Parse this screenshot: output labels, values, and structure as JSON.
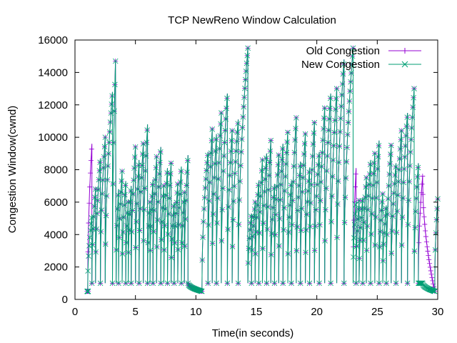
{
  "chart_data": {
    "type": "line",
    "title": "TCP NewReno Window Calculation",
    "xlabel": "Time(in seconds)",
    "ylabel": "Congestion Window(cwnd)",
    "xlim": [
      0,
      30
    ],
    "ylim": [
      0,
      16000
    ],
    "xticks": [
      "0",
      "5",
      "10",
      "15",
      "20",
      "25",
      "30"
    ],
    "yticks": [
      "0",
      "2000",
      "4000",
      "6000",
      "8000",
      "10000",
      "12000",
      "14000",
      "16000"
    ],
    "grid": false,
    "legend_position": "top-right",
    "series": [
      {
        "name": "Old Congestion",
        "color": "#9400d3",
        "marker": "plus",
        "cycles": [
          [
            1.0,
            500,
            500,
            0.1
          ],
          [
            1.05,
            500,
            9600,
            0.35
          ],
          [
            1.4,
            1000,
            6800,
            0.3
          ],
          [
            1.7,
            1000,
            8700,
            0.4
          ],
          [
            2.1,
            1000,
            10000,
            0.4
          ],
          [
            2.5,
            1000,
            12800,
            0.6
          ],
          [
            3.1,
            1000,
            14700,
            0.25
          ],
          [
            3.4,
            1000,
            6800,
            0.2
          ],
          [
            3.6,
            1000,
            7900,
            0.3
          ],
          [
            3.9,
            1000,
            7300,
            0.3
          ],
          [
            4.2,
            1000,
            6000,
            0.2
          ],
          [
            4.4,
            1000,
            7000,
            0.25
          ],
          [
            4.65,
            1000,
            9400,
            0.35
          ],
          [
            5.0,
            1000,
            8600,
            0.3
          ],
          [
            5.3,
            1000,
            9600,
            0.35
          ],
          [
            5.65,
            1000,
            10800,
            0.35
          ],
          [
            6.0,
            1000,
            6000,
            0.2
          ],
          [
            6.2,
            1000,
            7400,
            0.25
          ],
          [
            6.45,
            1000,
            8800,
            0.3
          ],
          [
            6.75,
            1000,
            9400,
            0.35
          ],
          [
            7.1,
            1000,
            7000,
            0.25
          ],
          [
            7.35,
            1000,
            8100,
            0.3
          ],
          [
            7.65,
            1000,
            8400,
            0.3
          ],
          [
            7.95,
            1000,
            6000,
            0.25
          ],
          [
            8.2,
            1000,
            7100,
            0.3
          ],
          [
            8.5,
            1000,
            8200,
            0.3
          ],
          [
            8.8,
            1000,
            6600,
            0.25
          ],
          [
            9.05,
            1000,
            8900,
            0.3
          ],
          [
            9.35,
            1000,
            500,
            1.15
          ],
          [
            10.5,
            500,
            9100,
            0.5
          ],
          [
            11.0,
            1000,
            10500,
            0.35
          ],
          [
            11.35,
            1000,
            10200,
            0.35
          ],
          [
            11.7,
            1000,
            11500,
            0.4
          ],
          [
            12.1,
            1000,
            12700,
            0.5
          ],
          [
            12.6,
            1000,
            10400,
            0.4
          ],
          [
            13.0,
            1000,
            11100,
            0.5
          ],
          [
            13.5,
            1000,
            15500,
            0.8
          ],
          [
            14.3,
            1000,
            5300,
            0.3
          ],
          [
            14.6,
            1000,
            6000,
            0.3
          ],
          [
            14.9,
            1000,
            7300,
            0.3
          ],
          [
            15.2,
            1000,
            8600,
            0.3
          ],
          [
            15.5,
            1000,
            9000,
            0.35
          ],
          [
            15.85,
            1000,
            9800,
            0.35
          ],
          [
            16.2,
            1000,
            7100,
            0.3
          ],
          [
            16.5,
            1000,
            8900,
            0.35
          ],
          [
            16.85,
            1000,
            9600,
            0.35
          ],
          [
            17.2,
            1000,
            10300,
            0.4
          ],
          [
            17.6,
            1000,
            7300,
            0.3
          ],
          [
            17.9,
            1000,
            11200,
            0.4
          ],
          [
            18.3,
            1000,
            8500,
            0.35
          ],
          [
            18.65,
            1000,
            10200,
            0.4
          ],
          [
            19.05,
            1000,
            8100,
            0.35
          ],
          [
            19.4,
            1000,
            10900,
            0.4
          ],
          [
            19.8,
            1000,
            9100,
            0.4
          ],
          [
            20.2,
            1000,
            11800,
            0.45
          ],
          [
            20.65,
            1000,
            12700,
            0.5
          ],
          [
            21.15,
            1000,
            13000,
            0.5
          ],
          [
            21.65,
            1000,
            14800,
            0.6
          ],
          [
            22.25,
            1000,
            15500,
            0.75
          ],
          [
            23.0,
            1000,
            8100,
            0.25
          ],
          [
            23.25,
            1000,
            6100,
            0.25
          ],
          [
            23.5,
            1000,
            6300,
            0.3
          ],
          [
            23.8,
            1000,
            7500,
            0.3
          ],
          [
            24.1,
            1000,
            8600,
            0.35
          ],
          [
            24.45,
            1000,
            9000,
            0.35
          ],
          [
            24.8,
            1000,
            9800,
            0.35
          ],
          [
            25.15,
            1000,
            6500,
            0.3
          ],
          [
            25.45,
            1000,
            5800,
            0.3
          ],
          [
            25.75,
            1000,
            9500,
            0.4
          ],
          [
            26.15,
            1000,
            8400,
            0.4
          ],
          [
            26.55,
            1000,
            10400,
            0.45
          ],
          [
            27.0,
            1000,
            11500,
            0.5
          ],
          [
            27.5,
            1000,
            13000,
            0.55
          ],
          [
            28.05,
            1000,
            8400,
            0.35
          ],
          [
            28.4,
            1000,
            7600,
            0.35
          ],
          [
            28.75,
            7600,
            500,
            1.0
          ],
          [
            29.75,
            500,
            6200,
            0.25
          ]
        ]
      },
      {
        "name": "New Congestion",
        "color": "#009e73",
        "marker": "cross",
        "cycles": [
          [
            1.0,
            500,
            500,
            0.1
          ],
          [
            1.05,
            500,
            5200,
            0.35
          ],
          [
            1.4,
            1000,
            6800,
            0.3
          ],
          [
            1.7,
            1000,
            8700,
            0.4
          ],
          [
            2.1,
            1000,
            10000,
            0.4
          ],
          [
            2.5,
            1000,
            12800,
            0.6
          ],
          [
            3.1,
            1000,
            14700,
            0.25
          ],
          [
            3.4,
            1000,
            6800,
            0.2
          ],
          [
            3.6,
            1000,
            7900,
            0.3
          ],
          [
            3.9,
            1000,
            7300,
            0.3
          ],
          [
            4.2,
            1000,
            6000,
            0.2
          ],
          [
            4.4,
            1000,
            7000,
            0.25
          ],
          [
            4.65,
            1000,
            9400,
            0.35
          ],
          [
            5.0,
            1000,
            8600,
            0.3
          ],
          [
            5.3,
            1000,
            9600,
            0.35
          ],
          [
            5.65,
            1000,
            10800,
            0.35
          ],
          [
            6.0,
            1000,
            6000,
            0.2
          ],
          [
            6.2,
            1000,
            7400,
            0.25
          ],
          [
            6.45,
            1000,
            8800,
            0.3
          ],
          [
            6.75,
            1000,
            9400,
            0.35
          ],
          [
            7.1,
            1000,
            7000,
            0.25
          ],
          [
            7.35,
            1000,
            8100,
            0.3
          ],
          [
            7.65,
            1000,
            8400,
            0.3
          ],
          [
            7.95,
            1000,
            6000,
            0.25
          ],
          [
            8.2,
            1000,
            7100,
            0.3
          ],
          [
            8.5,
            1000,
            8200,
            0.3
          ],
          [
            8.8,
            1000,
            6600,
            0.25
          ],
          [
            9.05,
            1000,
            8900,
            0.3
          ],
          [
            9.35,
            1000,
            500,
            1.15
          ],
          [
            10.5,
            500,
            9100,
            0.5
          ],
          [
            11.0,
            1000,
            10500,
            0.35
          ],
          [
            11.35,
            1000,
            10200,
            0.35
          ],
          [
            11.7,
            1000,
            11500,
            0.4
          ],
          [
            12.1,
            1000,
            12700,
            0.5
          ],
          [
            12.6,
            1000,
            10400,
            0.4
          ],
          [
            13.0,
            1000,
            11100,
            0.5
          ],
          [
            13.5,
            1000,
            15500,
            0.8
          ],
          [
            14.3,
            1000,
            5300,
            0.3
          ],
          [
            14.6,
            1000,
            6000,
            0.3
          ],
          [
            14.9,
            1000,
            7300,
            0.3
          ],
          [
            15.2,
            1000,
            8600,
            0.3
          ],
          [
            15.5,
            1000,
            9000,
            0.35
          ],
          [
            15.85,
            1000,
            9800,
            0.35
          ],
          [
            16.2,
            1000,
            7100,
            0.3
          ],
          [
            16.5,
            1000,
            8900,
            0.35
          ],
          [
            16.85,
            1000,
            9600,
            0.35
          ],
          [
            17.2,
            1000,
            10300,
            0.4
          ],
          [
            17.6,
            1000,
            7300,
            0.3
          ],
          [
            17.9,
            1000,
            11200,
            0.4
          ],
          [
            18.3,
            1000,
            8500,
            0.35
          ],
          [
            18.65,
            1000,
            10200,
            0.4
          ],
          [
            19.05,
            1000,
            8100,
            0.35
          ],
          [
            19.4,
            1000,
            10900,
            0.4
          ],
          [
            19.8,
            1000,
            9100,
            0.4
          ],
          [
            20.2,
            1000,
            11800,
            0.45
          ],
          [
            20.65,
            1000,
            12700,
            0.5
          ],
          [
            21.15,
            1000,
            13000,
            0.5
          ],
          [
            21.65,
            1000,
            14800,
            0.6
          ],
          [
            22.25,
            1000,
            15500,
            0.75
          ],
          [
            23.0,
            1000,
            6100,
            0.25
          ],
          [
            23.25,
            1000,
            6100,
            0.25
          ],
          [
            23.5,
            1000,
            6300,
            0.3
          ],
          [
            23.8,
            1000,
            7500,
            0.3
          ],
          [
            24.1,
            1000,
            8600,
            0.35
          ],
          [
            24.45,
            1000,
            9000,
            0.35
          ],
          [
            24.8,
            1000,
            9800,
            0.35
          ],
          [
            25.15,
            1000,
            6500,
            0.3
          ],
          [
            25.45,
            1000,
            5800,
            0.3
          ],
          [
            25.75,
            1000,
            9500,
            0.4
          ],
          [
            26.15,
            1000,
            8400,
            0.4
          ],
          [
            26.55,
            1000,
            10400,
            0.45
          ],
          [
            27.0,
            1000,
            11500,
            0.5
          ],
          [
            27.5,
            1000,
            13000,
            0.55
          ],
          [
            28.05,
            1000,
            8400,
            0.35
          ],
          [
            28.4,
            1000,
            1000,
            0.35
          ],
          [
            28.75,
            1000,
            500,
            1.0
          ],
          [
            29.75,
            500,
            6200,
            0.25
          ]
        ]
      }
    ]
  }
}
